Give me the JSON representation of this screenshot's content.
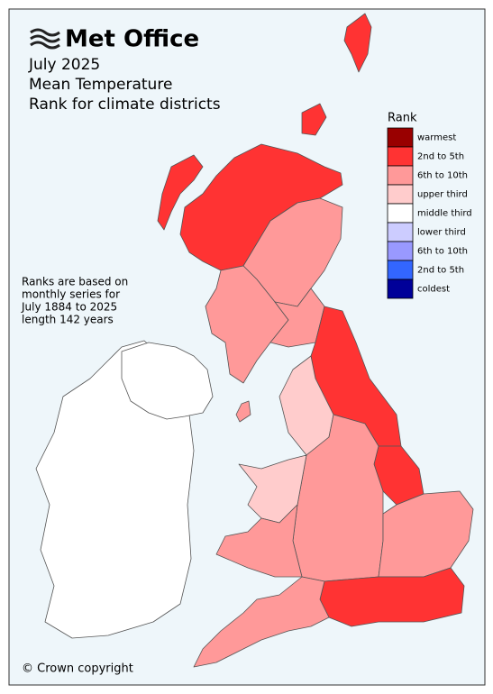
{
  "header": {
    "logo": "Met Office",
    "title_lines": [
      "July 2025",
      "Mean Temperature",
      "Rank for climate districts"
    ]
  },
  "legend": {
    "title": "Rank",
    "items": [
      {
        "label": "warmest",
        "color": "#990000"
      },
      {
        "label": "2nd to 5th",
        "color": "#ff3333"
      },
      {
        "label": "6th to 10th",
        "color": "#ff9999"
      },
      {
        "label": "upper third",
        "color": "#ffcccc"
      },
      {
        "label": "middle third",
        "color": "#ffffff"
      },
      {
        "label": "lower third",
        "color": "#ccccff"
      },
      {
        "label": "6th to 10th",
        "color": "#9999ff"
      },
      {
        "label": "2nd to 5th",
        "color": "#3366ff"
      },
      {
        "label": "coldest",
        "color": "#000099"
      }
    ]
  },
  "note_lines": [
    "Ranks are based on",
    "monthly series for",
    "July 1884 to 2025",
    "length 142 years"
  ],
  "footer": "© Crown copyright"
}
